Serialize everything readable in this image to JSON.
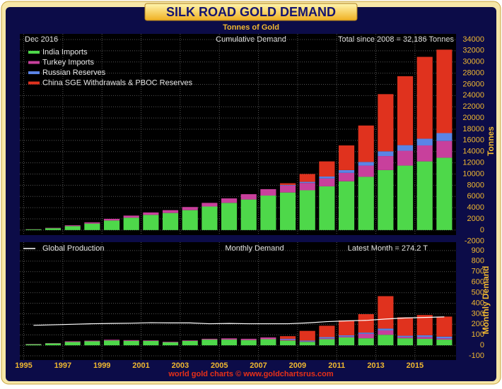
{
  "chart_data": [
    {
      "type": "bar",
      "stacked": true,
      "title": "SILK ROAD GOLD DEMAND",
      "subtitle": "Tonnes of Gold",
      "date_label": "Dec 2016",
      "panel_title": "Cumulative Demand",
      "note": "Total since 2008 = 32,186 Tonnes",
      "ylabel": "Tonnes",
      "x": [
        1995,
        1996,
        1997,
        1998,
        1999,
        2000,
        2001,
        2002,
        2003,
        2004,
        2005,
        2006,
        2007,
        2008,
        2009,
        2010,
        2011,
        2012,
        2013,
        2014,
        2015,
        2016
      ],
      "series": [
        {
          "name": "India Imports",
          "color": "#4ed84a",
          "values": [
            120,
            330,
            700,
            1150,
            1700,
            2200,
            2700,
            3050,
            3550,
            4200,
            4850,
            5450,
            6150,
            6700,
            7100,
            7800,
            8700,
            9500,
            10700,
            11500,
            12250,
            12900
          ]
        },
        {
          "name": "Turkey Imports",
          "color": "#c8409c",
          "values": [
            30,
            70,
            150,
            220,
            300,
            380,
            440,
            500,
            560,
            650,
            800,
            950,
            1150,
            1250,
            1300,
            1400,
            1500,
            2000,
            2500,
            2650,
            2850,
            3000
          ]
        },
        {
          "name": "Russian Reserves",
          "color": "#5a84e6",
          "values": [
            0,
            0,
            0,
            0,
            0,
            0,
            0,
            0,
            0,
            0,
            0,
            0,
            0,
            100,
            200,
            350,
            500,
            650,
            850,
            1000,
            1200,
            1400
          ]
        },
        {
          "name": "China SGE Withdrawals & PBOC Reserves",
          "color": "#e0321e",
          "values": [
            0,
            0,
            0,
            0,
            0,
            0,
            0,
            0,
            0,
            0,
            0,
            0,
            0,
            300,
            1400,
            2700,
            4400,
            6500,
            10200,
            12300,
            14600,
            14886
          ]
        }
      ],
      "xlim": [
        1994.8,
        2017.1
      ],
      "ylim": [
        -900,
        35000
      ],
      "yticks": [
        -2000,
        0,
        2000,
        4000,
        6000,
        8000,
        10000,
        12000,
        14000,
        16000,
        18000,
        20000,
        22000,
        24000,
        26000,
        28000,
        30000,
        32000,
        34000
      ],
      "grid": true
    },
    {
      "type": "bar",
      "stacked": true,
      "panel_title": "Monthly Demand",
      "note": "Latest Month = 274.2 T",
      "ylabel": "Monthly Demand",
      "source": "world gold charts © www.goldchartsrus.com",
      "x": [
        1995,
        1996,
        1997,
        1998,
        1999,
        2000,
        2001,
        2002,
        2003,
        2004,
        2005,
        2006,
        2007,
        2008,
        2009,
        2010,
        2011,
        2012,
        2013,
        2014,
        2015,
        2016
      ],
      "series": [
        {
          "name": "India Imports",
          "color": "#4ed84a",
          "values": [
            10,
            18,
            31,
            38,
            46,
            42,
            42,
            29,
            42,
            54,
            54,
            50,
            58,
            46,
            33,
            58,
            75,
            67,
            100,
            67,
            62,
            54
          ]
        },
        {
          "name": "Turkey Imports",
          "color": "#c8409c",
          "values": [
            3,
            3,
            7,
            6,
            7,
            7,
            5,
            5,
            5,
            8,
            12,
            12,
            17,
            8,
            4,
            8,
            8,
            42,
            42,
            12,
            17,
            12
          ]
        },
        {
          "name": "Russian Reserves",
          "color": "#5a84e6",
          "values": [
            0,
            0,
            0,
            0,
            0,
            0,
            0,
            0,
            0,
            0,
            0,
            0,
            0,
            8,
            8,
            12,
            12,
            12,
            17,
            12,
            17,
            17
          ]
        },
        {
          "name": "China SGE Withdrawals & PBOC Reserves",
          "color": "#e0321e",
          "values": [
            0,
            0,
            0,
            0,
            0,
            0,
            0,
            0,
            0,
            0,
            0,
            0,
            0,
            25,
            92,
            108,
            142,
            175,
            308,
            175,
            192,
            190
          ]
        }
      ],
      "line": {
        "name": "Global Production",
        "color": "#ffffff",
        "values": [
          190,
          195,
          200,
          205,
          208,
          210,
          215,
          213,
          213,
          205,
          208,
          205,
          205,
          205,
          213,
          225,
          232,
          237,
          250,
          260,
          265,
          270
        ]
      },
      "xlim": [
        1994.8,
        2017.1
      ],
      "ylim": [
        -140,
        980
      ],
      "xticks": [
        1995,
        1997,
        1999,
        2001,
        2003,
        2005,
        2007,
        2009,
        2011,
        2013,
        2015
      ],
      "yticks": [
        -100,
        0,
        100,
        200,
        300,
        400,
        500,
        600,
        700,
        800,
        900
      ],
      "grid": true
    }
  ]
}
